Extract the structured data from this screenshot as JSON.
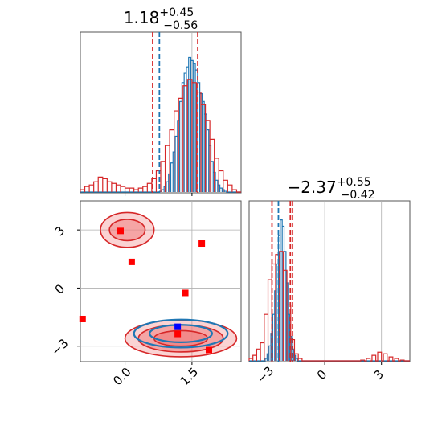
{
  "colors": {
    "blue": "#1f77b4",
    "red": "#d62728",
    "red_fill": "#f08080",
    "grid": "#b0b0b0",
    "marker_red": "#ff0000",
    "marker_blue": "#0000ff"
  },
  "chart_data": [
    {
      "type": "histogram",
      "panel": "top-left",
      "title": {
        "base": "1.18",
        "sup": "+0.45",
        "sub": "−0.56"
      },
      "xlim": [
        -1.0,
        2.6
      ],
      "grid": true,
      "x_ticks": [
        0.0,
        1.5
      ],
      "tick_labels_visible": false,
      "series": [
        {
          "color": "blue",
          "bins": [
            [
              0.8,
              0.01
            ],
            [
              0.85,
              0.02
            ],
            [
              0.9,
              0.04
            ],
            [
              0.95,
              0.07
            ],
            [
              1.0,
              0.12
            ],
            [
              1.05,
              0.19
            ],
            [
              1.1,
              0.26
            ],
            [
              1.15,
              0.36
            ],
            [
              1.2,
              0.46
            ],
            [
              1.25,
              0.58
            ],
            [
              1.3,
              0.7
            ],
            [
              1.35,
              0.76
            ],
            [
              1.4,
              0.8
            ],
            [
              1.45,
              0.86
            ],
            [
              1.5,
              0.84
            ],
            [
              1.55,
              0.82
            ],
            [
              1.6,
              0.78
            ],
            [
              1.65,
              0.7
            ],
            [
              1.7,
              0.63
            ],
            [
              1.75,
              0.58
            ],
            [
              1.8,
              0.5
            ],
            [
              1.85,
              0.4
            ],
            [
              1.9,
              0.3
            ],
            [
              1.95,
              0.2
            ],
            [
              2.0,
              0.13
            ],
            [
              2.05,
              0.08
            ],
            [
              2.1,
              0.05
            ],
            [
              2.15,
              0.03
            ],
            [
              2.2,
              0.02
            ],
            [
              2.25,
              0.01
            ]
          ],
          "quantiles": [
            0.77
          ]
        },
        {
          "color": "red",
          "bins": [
            [
              -0.95,
              0.02
            ],
            [
              -0.85,
              0.04
            ],
            [
              -0.75,
              0.05
            ],
            [
              -0.65,
              0.07
            ],
            [
              -0.55,
              0.1
            ],
            [
              -0.45,
              0.09
            ],
            [
              -0.35,
              0.07
            ],
            [
              -0.25,
              0.06
            ],
            [
              -0.15,
              0.05
            ],
            [
              -0.05,
              0.04
            ],
            [
              0.05,
              0.03
            ],
            [
              0.15,
              0.03
            ],
            [
              0.25,
              0.02
            ],
            [
              0.35,
              0.03
            ],
            [
              0.45,
              0.04
            ],
            [
              0.55,
              0.06
            ],
            [
              0.65,
              0.09
            ],
            [
              0.75,
              0.14
            ],
            [
              0.85,
              0.2
            ],
            [
              0.95,
              0.3
            ],
            [
              1.05,
              0.4
            ],
            [
              1.15,
              0.52
            ],
            [
              1.25,
              0.6
            ],
            [
              1.35,
              0.68
            ],
            [
              1.45,
              0.72
            ],
            [
              1.55,
              0.7
            ],
            [
              1.65,
              0.64
            ],
            [
              1.75,
              0.56
            ],
            [
              1.85,
              0.46
            ],
            [
              1.95,
              0.34
            ],
            [
              2.05,
              0.22
            ],
            [
              2.15,
              0.14
            ],
            [
              2.25,
              0.08
            ],
            [
              2.35,
              0.05
            ],
            [
              2.45,
              0.02
            ]
          ],
          "quantiles": [
            0.62,
            1.63
          ]
        }
      ]
    },
    {
      "type": "histogram",
      "panel": "bottom-right",
      "title": {
        "base": "−2.37",
        "sup": "+0.55",
        "sub": "−0.42"
      },
      "xlim": [
        -4.0,
        4.5
      ],
      "grid": true,
      "x_ticks": [
        -3,
        0,
        3
      ],
      "x_tick_labels": [
        "−3",
        "0",
        "3"
      ],
      "series": [
        {
          "color": "blue",
          "bins": [
            [
              -3.1,
              0.02
            ],
            [
              -3.0,
              0.05
            ],
            [
              -2.9,
              0.1
            ],
            [
              -2.8,
              0.18
            ],
            [
              -2.7,
              0.3
            ],
            [
              -2.6,
              0.45
            ],
            [
              -2.5,
              0.62
            ],
            [
              -2.4,
              0.8
            ],
            [
              -2.3,
              0.9
            ],
            [
              -2.2,
              0.86
            ],
            [
              -2.1,
              0.7
            ],
            [
              -2.0,
              0.5
            ],
            [
              -1.9,
              0.3
            ],
            [
              -1.8,
              0.16
            ],
            [
              -1.7,
              0.08
            ],
            [
              -1.6,
              0.04
            ],
            [
              -1.5,
              0.02
            ]
          ],
          "quantiles": [
            -2.45
          ]
        },
        {
          "color": "red",
          "bins": [
            [
              -3.9,
              0.02
            ],
            [
              -3.7,
              0.04
            ],
            [
              -3.5,
              0.08
            ],
            [
              -3.3,
              0.12
            ],
            [
              -3.1,
              0.3
            ],
            [
              -2.9,
              0.52
            ],
            [
              -2.7,
              0.62
            ],
            [
              -2.5,
              0.68
            ],
            [
              -2.3,
              0.7
            ],
            [
              -2.1,
              0.58
            ],
            [
              -1.9,
              0.36
            ],
            [
              -1.7,
              0.14
            ],
            [
              -1.5,
              0.05
            ],
            [
              -1.3,
              0.02
            ],
            [
              2.0,
              0.01
            ],
            [
              2.3,
              0.02
            ],
            [
              2.6,
              0.04
            ],
            [
              2.9,
              0.06
            ],
            [
              3.2,
              0.05
            ],
            [
              3.5,
              0.03
            ],
            [
              3.8,
              0.02
            ],
            [
              4.1,
              0.01
            ]
          ],
          "quantiles": [
            -2.79,
            -1.82,
            -1.7
          ]
        }
      ]
    },
    {
      "type": "scatter_contour",
      "panel": "bottom-left",
      "xlim": [
        -1.0,
        2.6
      ],
      "ylim": [
        -3.8,
        4.5
      ],
      "grid": true,
      "x_ticks": [
        0.0,
        1.5
      ],
      "x_tick_labels": [
        "0.0",
        "1.5"
      ],
      "y_ticks": [
        3,
        0,
        -3
      ],
      "y_tick_labels": [
        "3",
        "0",
        "−3"
      ],
      "contours": [
        {
          "color": "red",
          "cx": 1.25,
          "cy": -2.6,
          "rx": [
            1.25,
            0.95,
            0.6
          ],
          "ry": [
            0.95,
            0.7,
            0.4
          ]
        },
        {
          "color": "blue",
          "cx": 1.25,
          "cy": -2.35,
          "rx": [
            1.05,
            0.7
          ],
          "ry": [
            0.72,
            0.45
          ]
        },
        {
          "color": "red",
          "cx": 0.05,
          "cy": 3.0,
          "rx": [
            0.6,
            0.4
          ],
          "ry": [
            0.9,
            0.55
          ]
        }
      ],
      "points": [
        {
          "x": -0.1,
          "y": 2.95,
          "color": "marker_red"
        },
        {
          "x": 0.15,
          "y": 1.35,
          "color": "marker_red"
        },
        {
          "x": 1.72,
          "y": 2.3,
          "color": "marker_red"
        },
        {
          "x": 1.35,
          "y": -0.25,
          "color": "marker_red"
        },
        {
          "x": -0.95,
          "y": -1.6,
          "color": "marker_red"
        },
        {
          "x": 1.18,
          "y": -2.37,
          "color": "marker_red"
        },
        {
          "x": 1.88,
          "y": -3.2,
          "color": "marker_red"
        },
        {
          "x": 1.18,
          "y": -2.0,
          "color": "marker_blue"
        }
      ]
    }
  ]
}
